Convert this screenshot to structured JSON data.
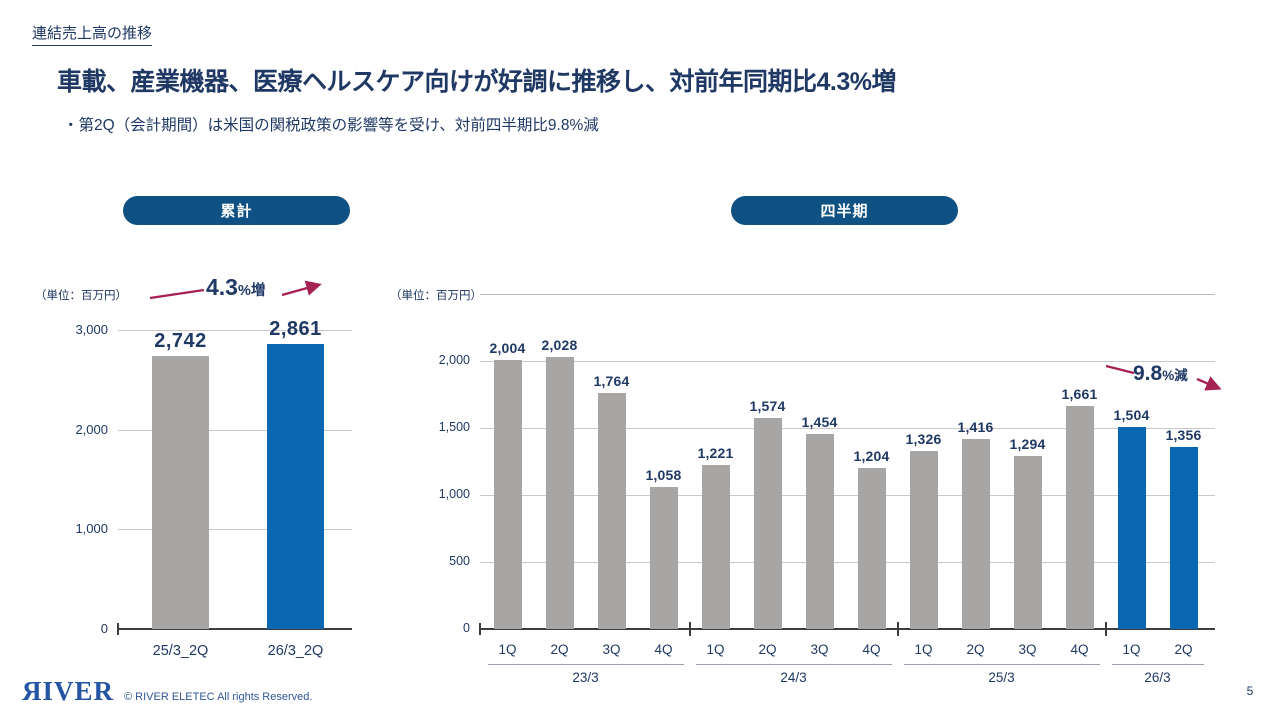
{
  "header": {
    "section_title": "連結売上高の推移",
    "title": "車載、産業機器、医療ヘルスケア向けが好調に推移し、対前年同期比4.3%増",
    "bullet": "・第2Q（会計期間）は米国の関税政策の影響等を受け、対前四半期比9.8%減"
  },
  "pills": {
    "left": "累計",
    "right": "四半期"
  },
  "colors": {
    "navy_text": "#1f3864",
    "pill_blue": "#0e5182",
    "bar_gray": "#a8a6a4",
    "bar_blue": "#0a68b2",
    "accent_crimson": "#a62154",
    "gridline": "#c9c9c9",
    "axis": "#3d3d3d",
    "plot_top_border": "#b4bac2",
    "group_underline": "#98a0ad",
    "logo_blue": "#2656a3"
  },
  "chart_data": [
    {
      "name": "cumulative",
      "type": "bar",
      "title": "累計",
      "unit_label": "（単位：百万円）",
      "categories": [
        "25/3_2Q",
        "26/3_2Q"
      ],
      "values": [
        2742,
        2861
      ],
      "value_labels": [
        "2,742",
        "2,861"
      ],
      "bar_colors": [
        "#a8a6a4",
        "#0a68b2"
      ],
      "ylim": [
        0,
        3000
      ],
      "yticks": {
        "values": [
          3000,
          2000,
          1000,
          0
        ],
        "labels": [
          "3,000",
          "2,000",
          "1,000",
          "0"
        ]
      },
      "grid": true,
      "legend": "none",
      "annotation": {
        "big": "4.3",
        "small": "%増",
        "direction": "up"
      }
    },
    {
      "name": "quarterly",
      "type": "bar",
      "title": "四半期",
      "unit_label": "（単位：百万円）",
      "groups": [
        {
          "label": "23/3",
          "quarters": [
            "1Q",
            "2Q",
            "3Q",
            "4Q"
          ]
        },
        {
          "label": "24/3",
          "quarters": [
            "1Q",
            "2Q",
            "3Q",
            "4Q"
          ]
        },
        {
          "label": "25/3",
          "quarters": [
            "1Q",
            "2Q",
            "3Q",
            "4Q"
          ]
        },
        {
          "label": "26/3",
          "quarters": [
            "1Q",
            "2Q"
          ]
        }
      ],
      "values": [
        2004,
        2028,
        1764,
        1058,
        1221,
        1574,
        1454,
        1204,
        1326,
        1416,
        1294,
        1661,
        1504,
        1356
      ],
      "value_labels": [
        "2,004",
        "2,028",
        "1,764",
        "1,058",
        "1,221",
        "1,574",
        "1,454",
        "1,204",
        "1,326",
        "1,416",
        "1,294",
        "1,661",
        "1,504",
        "1,356"
      ],
      "bar_colors": [
        "#a8a6a4",
        "#a8a6a4",
        "#a8a6a4",
        "#a8a6a4",
        "#a8a6a4",
        "#a8a6a4",
        "#a8a6a4",
        "#a8a6a4",
        "#a8a6a4",
        "#a8a6a4",
        "#a8a6a4",
        "#a8a6a4",
        "#0a68b2",
        "#0a68b2"
      ],
      "ylim": [
        0,
        2500
      ],
      "yticks": {
        "values": [
          2000,
          1500,
          1000,
          500,
          0
        ],
        "labels": [
          "2,000",
          "1,500",
          "1,000",
          "500",
          "0"
        ]
      },
      "grid": true,
      "legend": "none",
      "annotation": {
        "big": "9.8",
        "small": "%減",
        "direction": "down"
      }
    }
  ],
  "footer": {
    "logo_text": "ЯIVER",
    "copyright": "© RIVER ELETEC All rights Reserved.",
    "page_number": "5"
  }
}
